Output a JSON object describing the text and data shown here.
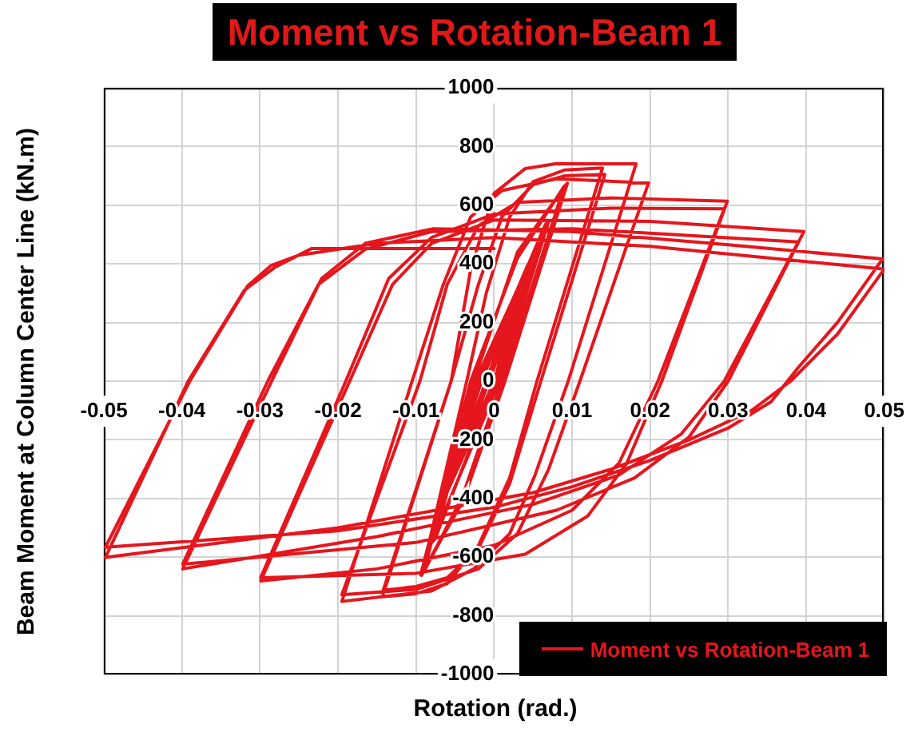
{
  "chart_data": {
    "type": "line",
    "title": "Moment vs Rotation-Beam 1",
    "xlabel": "Rotation (rad.)",
    "ylabel": "Beam Moment at Column Center Line (kN.m)",
    "xlim": [
      -0.05,
      0.05
    ],
    "xticks": [
      -0.05,
      -0.04,
      -0.03,
      -0.02,
      -0.01,
      0,
      0.01,
      0.02,
      0.03,
      0.04,
      0.05
    ],
    "ylim": [
      -1000,
      1000
    ],
    "yticks": [
      -1000,
      -800,
      -600,
      -400,
      -200,
      0,
      200,
      400,
      600,
      800,
      1000
    ],
    "grid": true,
    "legend": "bottom right",
    "marker": "none",
    "line_style": "solid",
    "series": [
      {
        "name": "Moment vs Rotation-Beam 1",
        "color": "#e5161d",
        "x": [
          0,
          0.003,
          -0.0048,
          0.0032,
          -0.0046,
          0.0028,
          -0.005,
          0.0034,
          -0.0044,
          -0.0018,
          0.0045,
          0.0002,
          -0.0065,
          -0.0016,
          0.0047,
          0.0004,
          -0.0063,
          -0.002,
          0.0043,
          0,
          -0.0067,
          -0.0017,
          0.0046,
          0.0003,
          -0.0064,
          -0.0022,
          0.0068,
          0.0005,
          -0.0078,
          -0.0024,
          0.007,
          0.0007,
          -0.008,
          -0.002,
          0.0066,
          0.0003,
          -0.0076,
          -0.0023,
          0.0069,
          0.0006,
          -0.0079,
          -0.0028,
          0.003,
          0.0092,
          0.0012,
          -0.004,
          -0.0092,
          -0.0026,
          0.003,
          0.0094,
          0.0014,
          -0.004,
          -0.0094,
          -0.003,
          0.003,
          0.009,
          0.001,
          -0.004,
          -0.009,
          -0.0027,
          0.003,
          0.0093,
          0.0013,
          -0.004,
          -0.0093,
          -0.0035,
          -0.001,
          0.002,
          0.005,
          0.009,
          0.0139,
          0.0055,
          0.002,
          -0.002,
          -0.006,
          -0.01,
          -0.0143,
          -0.0055,
          -0.002,
          0.001,
          0.005,
          0.009,
          0.0142,
          0.006,
          0.002,
          -0.002,
          -0.006,
          -0.01,
          -0.0142,
          -0.0055,
          -0.003,
          0,
          0.004,
          0.008,
          0.0182,
          0.0095,
          0.0052,
          0.002,
          -0.0026,
          -0.008,
          -0.0195,
          -0.0105,
          -0.0065,
          -0.003,
          0.001,
          0.008,
          0.0198,
          0.011,
          0.007,
          0.003,
          -0.002,
          -0.01,
          -0.0195,
          -0.0095,
          -0.006,
          -0.002,
          0.003,
          0.015,
          0.0299,
          0.0215,
          0.017,
          0.012,
          0.004,
          -0.01,
          -0.0299,
          -0.019,
          -0.0135,
          -0.008,
          0,
          0.015,
          0.0295,
          0.021,
          0.016,
          0.01,
          0,
          -0.015,
          -0.0299,
          -0.0185,
          -0.013,
          -0.008,
          0,
          0.02,
          0.0397,
          0.03,
          0.025,
          0.018,
          0.008,
          -0.01,
          -0.0399,
          -0.029,
          -0.0225,
          -0.0165,
          -0.008,
          0.01,
          0.039,
          0.0295,
          0.024,
          0.016,
          0.005,
          -0.015,
          -0.0399,
          -0.0285,
          -0.0221,
          -0.0165,
          -0.0078,
          0.01,
          0.03,
          0.0498,
          0.044,
          0.039,
          0.0355,
          0.03,
          0.02,
          0.01,
          0,
          -0.02,
          -0.0498,
          -0.039,
          -0.0316,
          -0.0286,
          -0.0251,
          -0.015,
          0,
          0.02,
          0.05,
          0.044,
          0.038,
          0.033,
          0.025,
          0.015,
          0.005,
          -0.02,
          -0.0498,
          -0.0392,
          -0.032,
          -0.028,
          -0.0234,
          0
        ],
        "values": [
          0,
          280,
          -280,
          285,
          -275,
          275,
          -285,
          290,
          -270,
          0,
          400,
          0,
          -400,
          0,
          405,
          0,
          -395,
          0,
          395,
          0,
          -405,
          0,
          400,
          0,
          -400,
          0,
          540,
          0,
          -545,
          0,
          545,
          0,
          -550,
          0,
          535,
          0,
          -540,
          0,
          545,
          0,
          -548,
          0,
          430,
          670,
          0,
          -400,
          -655,
          0,
          440,
          675,
          0,
          -410,
          -660,
          0,
          420,
          665,
          0,
          -390,
          -650,
          0,
          435,
          672,
          0,
          -405,
          -662,
          0,
          300,
          560,
          680,
          720,
          727,
          0,
          -330,
          -560,
          -690,
          -725,
          -735,
          0,
          330,
          560,
          670,
          700,
          705,
          0,
          -350,
          -570,
          -670,
          -700,
          -713,
          0,
          380,
          640,
          725,
          742,
          741,
          0,
          -324,
          -520,
          -640,
          -715,
          -751,
          0,
          330,
          560,
          650,
          690,
          676,
          0,
          -300,
          -520,
          -640,
          -710,
          -728,
          0,
          330,
          530,
          610,
          625,
          614,
          0,
          -280,
          -460,
          -590,
          -655,
          -670,
          0,
          350,
          490,
          570,
          590,
          588,
          0,
          -280,
          -440,
          -560,
          -640,
          -681,
          0,
          330,
          470,
          550,
          545,
          510,
          0,
          -190,
          -330,
          -440,
          -550,
          -624,
          0,
          330,
          450,
          510,
          520,
          475,
          0,
          -180,
          -320,
          -420,
          -530,
          -640,
          0,
          350,
          470,
          520,
          510,
          465,
          417,
          200,
          47,
          -70,
          -160,
          -270,
          -360,
          -430,
          -510,
          -566,
          0,
          324,
          394,
          429,
          470,
          490,
          460,
          382,
          160,
          0,
          -100,
          -200,
          -300,
          -380,
          -500,
          -601,
          0,
          310,
          390,
          452,
          452
        ]
      }
    ]
  }
}
